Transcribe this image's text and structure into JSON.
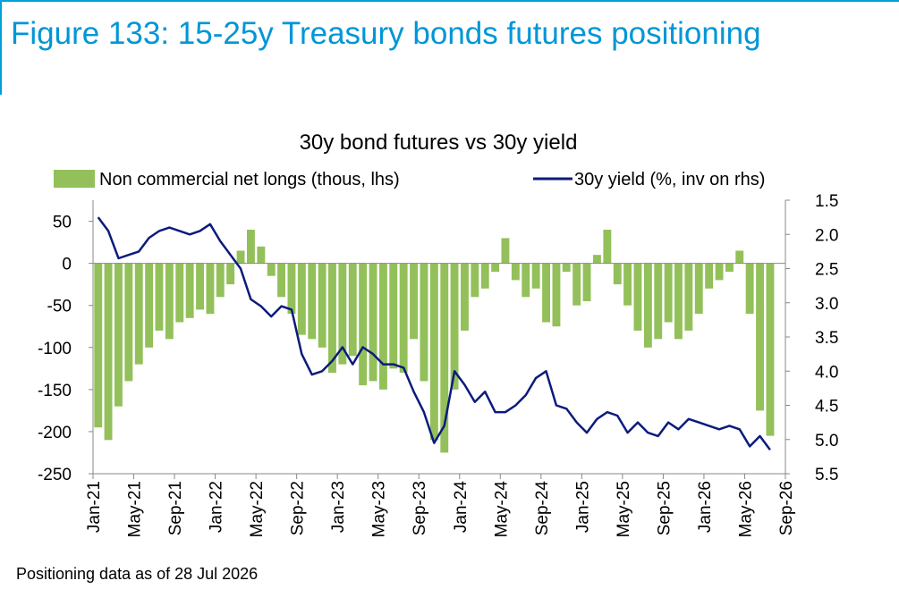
{
  "figure_title": "Figure 133: 15-25y Treasury bonds futures positioning",
  "footnote": "Positioning data as of 28 Jul 2026",
  "colors": {
    "bars": "#93C05A",
    "line": "#0B1B7C",
    "title": "#0096D6",
    "axis": "#888888"
  },
  "chart_data": {
    "type": "bar",
    "title": "30y bond futures vs 30y yield",
    "legend": {
      "placement": "top",
      "entries": [
        "Non commercial net longs (thous, lhs)",
        "30y yield (%, inv on rhs)"
      ]
    },
    "x_tick_labels": [
      "Jan-21",
      "May-21",
      "Sep-21",
      "Jan-22",
      "May-22",
      "Sep-22",
      "Jan-23",
      "May-23",
      "Sep-23",
      "Jan-24",
      "May-24",
      "Sep-24",
      "Jan-25",
      "May-25",
      "Sep-25",
      "Jan-26",
      "May-26",
      "Sep-26"
    ],
    "xlim": [
      "2021-01",
      "2026-09"
    ],
    "y_left": {
      "ylim": [
        -250,
        75
      ],
      "ticks": [
        50,
        0,
        -50,
        -100,
        -150,
        -200,
        -250
      ]
    },
    "y_right": {
      "ylim": [
        1.5,
        5.5
      ],
      "inverted": true,
      "ticks": [
        1.5,
        2.0,
        2.5,
        3.0,
        3.5,
        4.0,
        4.5,
        5.0,
        5.5
      ]
    },
    "series": [
      {
        "name": "Non commercial net longs (thous, lhs)",
        "type": "bar",
        "axis": "left",
        "x": [
          "2021-01",
          "2021-02",
          "2021-03",
          "2021-04",
          "2021-05",
          "2021-06",
          "2021-07",
          "2021-08",
          "2021-09",
          "2021-10",
          "2021-11",
          "2021-12",
          "2022-01",
          "2022-02",
          "2022-03",
          "2022-04",
          "2022-05",
          "2022-06",
          "2022-07",
          "2022-08",
          "2022-09",
          "2022-10",
          "2022-11",
          "2022-12",
          "2023-01",
          "2023-02",
          "2023-03",
          "2023-04",
          "2023-05",
          "2023-06",
          "2023-07",
          "2023-08",
          "2023-09",
          "2023-10",
          "2023-11",
          "2023-12",
          "2024-01",
          "2024-02",
          "2024-03",
          "2024-04",
          "2024-05",
          "2024-06",
          "2024-07",
          "2024-08",
          "2024-09",
          "2024-10",
          "2024-11",
          "2024-12",
          "2025-01",
          "2025-02",
          "2025-03",
          "2025-04",
          "2025-05",
          "2025-06",
          "2025-07",
          "2025-08",
          "2025-09",
          "2025-10",
          "2025-11",
          "2025-12",
          "2026-01",
          "2026-02",
          "2026-03",
          "2026-04",
          "2026-05",
          "2026-06",
          "2026-07"
        ],
        "values": [
          -195,
          -210,
          -170,
          -140,
          -120,
          -100,
          -80,
          -90,
          -70,
          -65,
          -55,
          -60,
          -40,
          -25,
          15,
          40,
          20,
          -15,
          -40,
          -60,
          -85,
          -90,
          -100,
          -130,
          -120,
          -110,
          -145,
          -140,
          -150,
          -125,
          -130,
          -90,
          -140,
          -210,
          -225,
          -150,
          -80,
          -40,
          -30,
          -10,
          30,
          -20,
          -40,
          -30,
          -70,
          -75,
          -10,
          -50,
          -45,
          10,
          40,
          -25,
          -50,
          -80,
          -100,
          -90,
          -70,
          -90,
          -80,
          -60,
          -30,
          -20,
          -10,
          15,
          -60,
          -175,
          -205
        ]
      },
      {
        "name": "30y yield (%, inv on rhs)",
        "type": "line",
        "axis": "right",
        "x": [
          "2021-01",
          "2021-02",
          "2021-03",
          "2021-04",
          "2021-05",
          "2021-06",
          "2021-07",
          "2021-08",
          "2021-09",
          "2021-10",
          "2021-11",
          "2021-12",
          "2022-01",
          "2022-02",
          "2022-03",
          "2022-04",
          "2022-05",
          "2022-06",
          "2022-07",
          "2022-08",
          "2022-09",
          "2022-10",
          "2022-11",
          "2022-12",
          "2023-01",
          "2023-02",
          "2023-03",
          "2023-04",
          "2023-05",
          "2023-06",
          "2023-07",
          "2023-08",
          "2023-09",
          "2023-10",
          "2023-11",
          "2023-12",
          "2024-01",
          "2024-02",
          "2024-03",
          "2024-04",
          "2024-05",
          "2024-06",
          "2024-07",
          "2024-08",
          "2024-09",
          "2024-10",
          "2024-11",
          "2024-12",
          "2025-01",
          "2025-02",
          "2025-03",
          "2025-04",
          "2025-05",
          "2025-06",
          "2025-07",
          "2025-08",
          "2025-09",
          "2025-10",
          "2025-11",
          "2025-12",
          "2026-01",
          "2026-02",
          "2026-03",
          "2026-04",
          "2026-05",
          "2026-06",
          "2026-07"
        ],
        "values": [
          1.75,
          1.95,
          2.35,
          2.3,
          2.25,
          2.05,
          1.95,
          1.9,
          1.95,
          2.0,
          1.95,
          1.85,
          2.1,
          2.3,
          2.5,
          2.95,
          3.05,
          3.2,
          3.05,
          3.1,
          3.75,
          4.05,
          4.0,
          3.85,
          3.65,
          3.9,
          3.65,
          3.75,
          3.9,
          3.9,
          3.95,
          4.3,
          4.6,
          5.05,
          4.8,
          4.0,
          4.2,
          4.45,
          4.3,
          4.6,
          4.6,
          4.5,
          4.35,
          4.1,
          4.0,
          4.5,
          4.55,
          4.75,
          4.9,
          4.7,
          4.6,
          4.65,
          4.9,
          4.75,
          4.9,
          4.95,
          4.75,
          4.85,
          4.7,
          4.75,
          4.8,
          4.85,
          4.8,
          4.85,
          5.1,
          4.95,
          5.15
        ]
      }
    ]
  }
}
